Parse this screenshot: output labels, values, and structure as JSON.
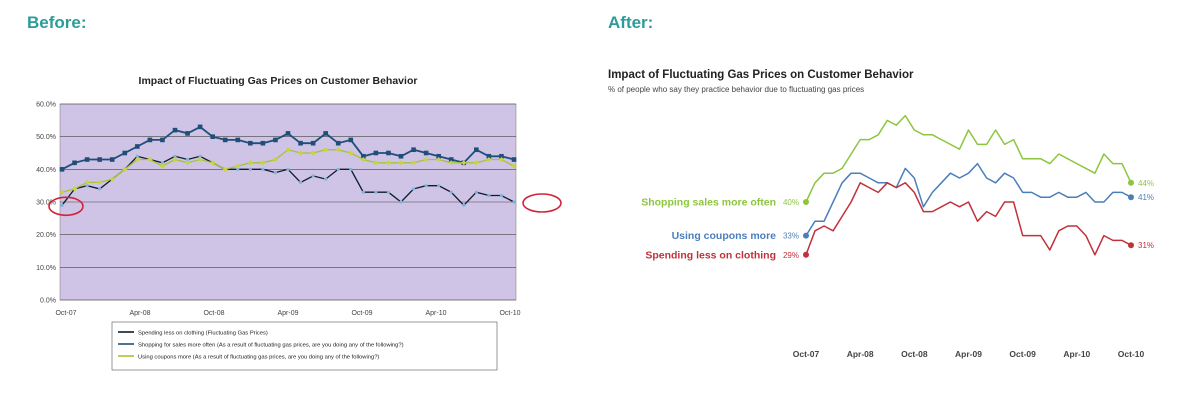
{
  "headings": {
    "before": "Before:",
    "after": "After:"
  },
  "chart_data": [
    {
      "type": "line",
      "title": "Impact of Fluctuating Gas Prices on Customer Behavior",
      "ylim": [
        0,
        60
      ],
      "y_ticks": [
        "0.0%",
        "10.0%",
        "20.0%",
        "30.0%",
        "40.0%",
        "50.0%",
        "60.0%"
      ],
      "x_ticks": [
        "Oct-07",
        "Apr-08",
        "Oct-08",
        "Apr-09",
        "Oct-09",
        "Apr-10",
        "Oct-10"
      ],
      "grid": true,
      "legend_position": "bottom",
      "colors": {
        "plot_bg": "#cfc3e6",
        "highlight_circle": "#d0243a"
      },
      "series": [
        {
          "name": "Spending less on clothing (Fluctuating Gas Prices)",
          "color": "#0d1b2a",
          "values": [
            29,
            34,
            35,
            34,
            37,
            40,
            44,
            43,
            42,
            44,
            43,
            44,
            42,
            40,
            40,
            40,
            40,
            39,
            40,
            36,
            38,
            37,
            40,
            40,
            33,
            33,
            33,
            30,
            34,
            35,
            35,
            33,
            29,
            33,
            32,
            32,
            30
          ]
        },
        {
          "name": "Shopping for sales more often (As a result of fluctuating gas prices, are you doing any of the following?)",
          "color": "#1f4e79",
          "values": [
            40,
            42,
            43,
            43,
            43,
            45,
            47,
            49,
            49,
            52,
            51,
            53,
            50,
            49,
            49,
            48,
            48,
            49,
            51,
            48,
            48,
            51,
            48,
            49,
            44,
            45,
            45,
            44,
            46,
            45,
            44,
            43,
            42,
            46,
            44,
            44,
            43
          ]
        },
        {
          "name": "Using coupons more (As a result of fluctuating gas prices, are you doing any of the following?)",
          "color": "#a3c43b",
          "marker_color": "#c9d43a",
          "values": [
            33,
            34,
            36,
            36,
            37,
            40,
            43,
            43,
            41,
            43,
            42,
            43,
            42,
            40,
            41,
            42,
            42,
            43,
            46,
            45,
            45,
            46,
            46,
            45,
            43,
            42,
            42,
            42,
            42,
            43,
            43,
            42,
            42,
            42,
            43,
            43,
            41
          ]
        }
      ]
    },
    {
      "type": "line",
      "title": "Impact of Fluctuating Gas Prices on Customer Behavior",
      "subtitle": "% of people who say they practice behavior due to fluctuating gas prices",
      "x_ticks": [
        "Oct-07",
        "Apr-08",
        "Oct-08",
        "Apr-09",
        "Oct-09",
        "Apr-10",
        "Oct-10"
      ],
      "grid": false,
      "legend_position": "left (direct labels)",
      "series": [
        {
          "name": "Shopping sales more often",
          "color": "#8cc63f",
          "start_label": "40%",
          "end_label": "44%",
          "values": [
            40,
            44,
            46,
            46,
            47,
            50,
            53,
            53,
            54,
            57,
            56,
            58,
            55,
            54,
            54,
            53,
            52,
            51,
            55,
            52,
            52,
            55,
            52,
            53,
            49,
            49,
            49,
            48,
            50,
            49,
            48,
            47,
            46,
            50,
            48,
            48,
            44
          ]
        },
        {
          "name": "Using coupons more",
          "color": "#4a7ebb",
          "start_label": "33%",
          "end_label": "41%",
          "values": [
            33,
            36,
            36,
            40,
            44,
            46,
            46,
            45,
            44,
            44,
            43,
            47,
            45,
            39,
            42,
            44,
            46,
            45,
            46,
            48,
            45,
            44,
            46,
            45,
            42,
            42,
            41,
            41,
            42,
            41,
            41,
            42,
            40,
            40,
            42,
            42,
            41
          ]
        },
        {
          "name": "Spending less on clothing",
          "color": "#c1313a",
          "start_label": "29%",
          "end_label": "31%",
          "values": [
            29,
            34,
            35,
            34,
            37,
            40,
            44,
            43,
            42,
            44,
            43,
            44,
            42,
            38,
            38,
            39,
            40,
            39,
            40,
            36,
            38,
            37,
            40,
            40,
            33,
            33,
            33,
            30,
            34,
            35,
            35,
            33,
            29,
            33,
            32,
            32,
            31
          ]
        }
      ]
    }
  ]
}
